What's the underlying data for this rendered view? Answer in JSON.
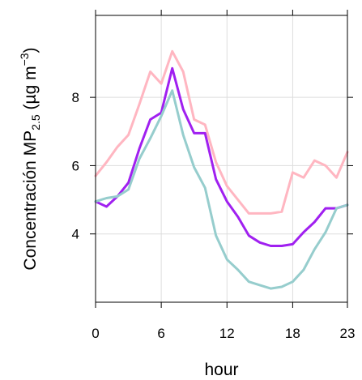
{
  "chart_data": {
    "type": "line",
    "xlabel": "hour",
    "ylabel_main": "Concentración MP",
    "ylabel_sub": "2.5",
    "ylabel_unit_open": " (µg m",
    "ylabel_sup": "−3",
    "ylabel_unit_close": ")",
    "xlim": [
      0,
      23
    ],
    "ylim": [
      2.0,
      10.4
    ],
    "xticks": [
      0,
      6,
      12,
      18,
      23
    ],
    "yticks": [
      4,
      6,
      8
    ],
    "x_tick_labels": [
      "0",
      "6",
      "12",
      "18",
      "23"
    ],
    "y_tick_labels": [
      "4",
      "6",
      "8"
    ],
    "grid": true,
    "grid_color": "#dddddd",
    "series": [
      {
        "color": "#ffb6c1",
        "x": [
          0,
          1,
          2,
          3,
          4,
          5,
          6,
          7,
          8,
          9,
          10,
          11,
          12,
          13,
          14,
          15,
          16,
          17,
          18,
          19,
          20,
          21,
          22,
          23
        ],
        "y": [
          5.7,
          6.1,
          6.55,
          6.9,
          7.8,
          8.75,
          8.4,
          9.35,
          8.75,
          7.35,
          7.2,
          6.1,
          5.4,
          5.0,
          4.6,
          4.6,
          4.6,
          4.65,
          5.8,
          5.65,
          6.15,
          6.0,
          5.65,
          6.4
        ]
      },
      {
        "color": "#a020f0",
        "x": [
          0,
          1,
          2,
          3,
          4,
          5,
          6,
          7,
          8,
          9,
          10,
          11,
          12,
          13,
          14,
          15,
          16,
          17,
          18,
          19,
          20,
          21,
          22,
          23
        ],
        "y": [
          4.95,
          4.8,
          5.1,
          5.5,
          6.5,
          7.35,
          7.55,
          8.85,
          7.65,
          6.95,
          6.95,
          5.6,
          4.95,
          4.5,
          3.95,
          3.75,
          3.65,
          3.65,
          3.7,
          4.05,
          4.35,
          4.75,
          4.75,
          4.85
        ]
      },
      {
        "color": "#96cdcd",
        "x": [
          0,
          1,
          2,
          3,
          4,
          5,
          6,
          7,
          8,
          9,
          10,
          11,
          12,
          13,
          14,
          15,
          16,
          17,
          18,
          19,
          20,
          21,
          22,
          23
        ],
        "y": [
          4.95,
          5.05,
          5.1,
          5.3,
          6.2,
          6.8,
          7.45,
          8.2,
          6.9,
          5.95,
          5.35,
          3.95,
          3.25,
          2.95,
          2.6,
          2.5,
          2.4,
          2.45,
          2.6,
          2.95,
          3.55,
          4.05,
          4.75,
          4.85
        ]
      }
    ]
  }
}
